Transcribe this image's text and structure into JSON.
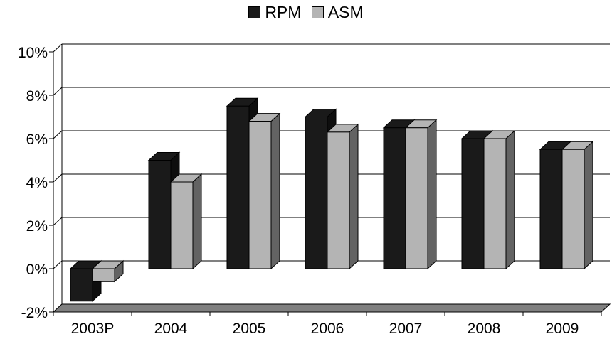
{
  "chart_data": {
    "type": "bar",
    "categories": [
      "2003P",
      "2004",
      "2005",
      "2006",
      "2007",
      "2008",
      "2009"
    ],
    "series": [
      {
        "name": "RPM",
        "values": [
          -1.5,
          5.0,
          7.5,
          7.0,
          6.5,
          6.0,
          5.5
        ],
        "color": "#1a1a1a"
      },
      {
        "name": "ASM",
        "values": [
          -0.6,
          4.0,
          6.8,
          6.3,
          6.5,
          6.0,
          5.5
        ],
        "color": "#b4b4b4"
      }
    ],
    "ylim": [
      -2,
      10
    ],
    "yticks": [
      -2,
      0,
      2,
      4,
      6,
      8,
      10
    ],
    "ytick_labels": [
      "-2%",
      "0%",
      "2%",
      "4%",
      "6%",
      "8%",
      "10%"
    ],
    "title": "",
    "xlabel": "",
    "ylabel": "",
    "grid": true,
    "legend_position": "top-center",
    "style": "3d-clustered-column"
  }
}
